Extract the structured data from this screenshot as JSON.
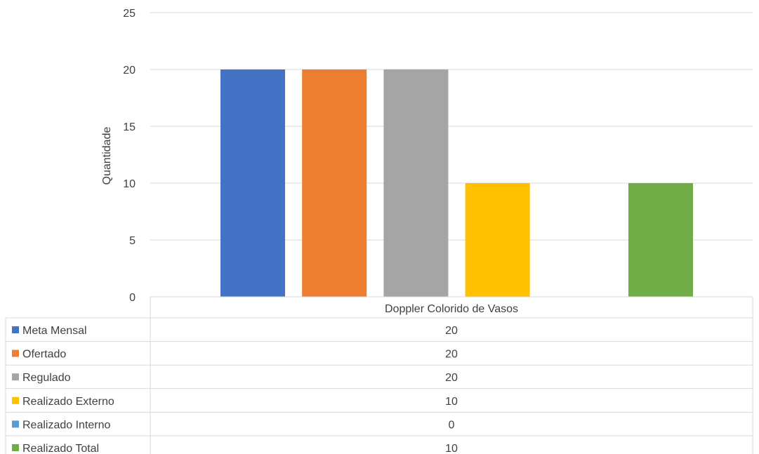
{
  "chart_data": {
    "type": "bar",
    "categories": [
      "Doppler Colorido de Vasos"
    ],
    "series": [
      {
        "name": "Meta Mensal",
        "values": [
          20
        ],
        "color": "#4472C4"
      },
      {
        "name": "Ofertado",
        "values": [
          20
        ],
        "color": "#ED7D31"
      },
      {
        "name": "Regulado",
        "values": [
          20
        ],
        "color": "#A5A5A5"
      },
      {
        "name": "Realizado Externo",
        "values": [
          10
        ],
        "color": "#FFC000"
      },
      {
        "name": "Realizado Interno",
        "values": [
          0
        ],
        "color": "#5B9BD5"
      },
      {
        "name": "Realizado Total",
        "values": [
          10
        ],
        "color": "#70AD47"
      }
    ],
    "ylabel": "Quantidade",
    "ylim": [
      0,
      25
    ],
    "yticks": [
      0,
      5,
      10,
      15,
      20,
      25
    ],
    "grid": true,
    "legend": "data-table"
  }
}
